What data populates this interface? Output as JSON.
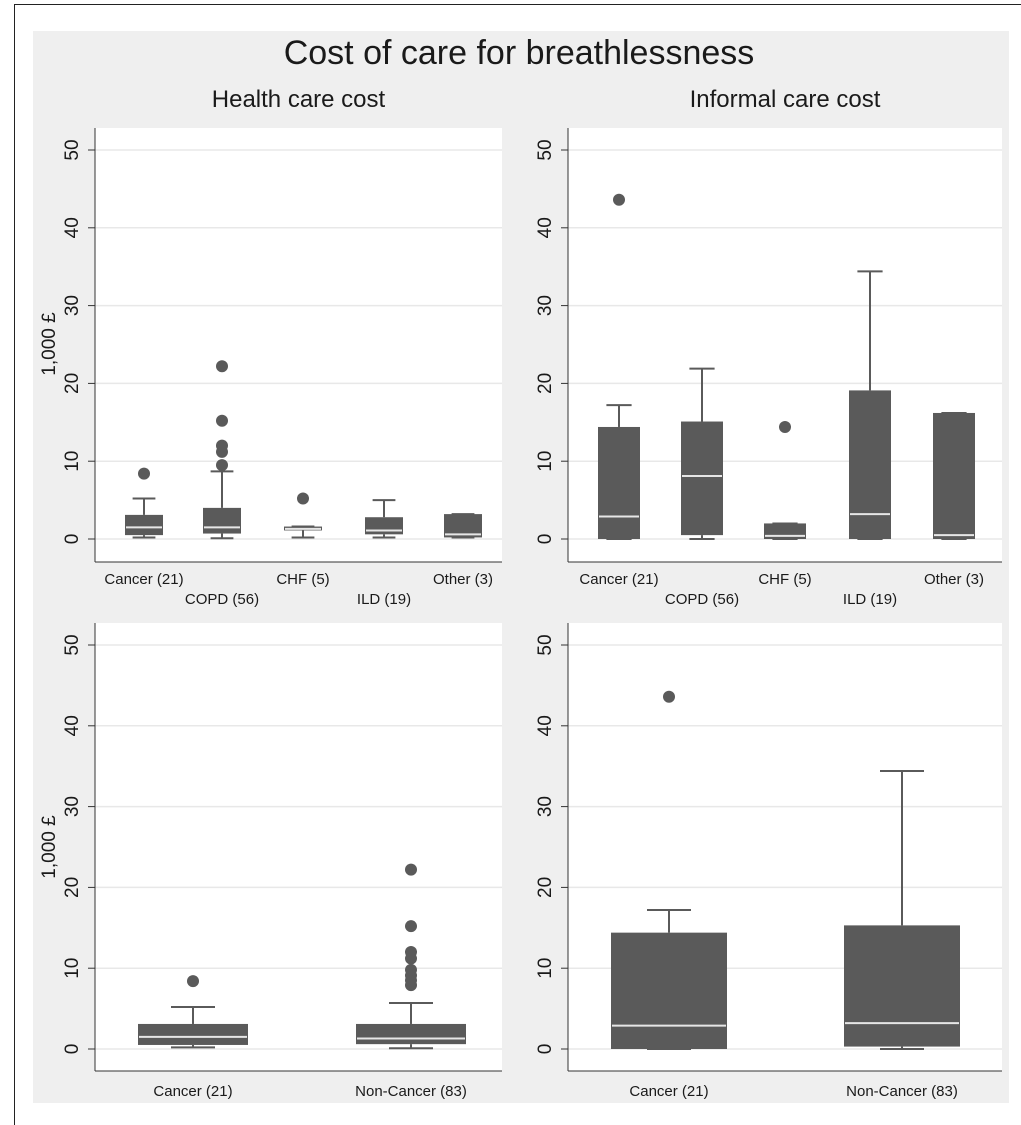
{
  "title": "Cost of care for breathlessness",
  "colors": {
    "box": "#5a5a5a",
    "median": "#e6e6e6",
    "grid": "#e8e8e8",
    "panel": "#efefef",
    "plot": "#ffffff"
  },
  "chart_data": [
    {
      "type": "box",
      "title": "Health care cost",
      "ylabel": "1,000 £",
      "ylim": [
        0,
        50
      ],
      "yticks": [
        "0",
        "10",
        "20",
        "30",
        "40",
        "50"
      ],
      "grid": true,
      "categories": [
        "Cancer (21)",
        "COPD (56)",
        "CHF (5)",
        "ILD (19)",
        "Other (3)"
      ],
      "boxes": [
        {
          "q1": 0.5,
          "median": 1.5,
          "q3": 3.1,
          "whisker_low": 0.2,
          "whisker_high": 5.2,
          "outliers": [
            8.4
          ]
        },
        {
          "q1": 0.7,
          "median": 1.5,
          "q3": 4.0,
          "whisker_low": 0.1,
          "whisker_high": 8.7,
          "outliers": [
            9.5,
            11.2,
            12.0,
            15.2,
            22.2
          ]
        },
        {
          "q1": 1.1,
          "median": 1.3,
          "q3": 1.6,
          "whisker_low": 0.2,
          "whisker_high": 1.6,
          "outliers": [
            5.2
          ]
        },
        {
          "q1": 0.6,
          "median": 1.1,
          "q3": 2.8,
          "whisker_low": 0.2,
          "whisker_high": 5.0,
          "outliers": []
        },
        {
          "q1": 0.2,
          "median": 0.6,
          "q3": 3.2,
          "whisker_low": 0.2,
          "whisker_high": 3.2,
          "outliers": []
        }
      ]
    },
    {
      "type": "box",
      "title": "Informal care cost",
      "ylabel": "",
      "ylim": [
        0,
        50
      ],
      "yticks": [
        "0",
        "10",
        "20",
        "30",
        "40",
        "50"
      ],
      "grid": true,
      "categories": [
        "Cancer (21)",
        "COPD (56)",
        "CHF (5)",
        "ILD (19)",
        "Other (3)"
      ],
      "boxes": [
        {
          "q1": 0.0,
          "median": 2.9,
          "q3": 14.4,
          "whisker_low": 0.0,
          "whisker_high": 17.2,
          "outliers": [
            43.6
          ]
        },
        {
          "q1": 0.5,
          "median": 8.1,
          "q3": 15.1,
          "whisker_low": 0.0,
          "whisker_high": 21.9,
          "outliers": []
        },
        {
          "q1": 0.0,
          "median": 0.4,
          "q3": 2.0,
          "whisker_low": 0.0,
          "whisker_high": 2.0,
          "outliers": [
            14.4
          ]
        },
        {
          "q1": 0.0,
          "median": 3.2,
          "q3": 19.1,
          "whisker_low": 0.0,
          "whisker_high": 34.4,
          "outliers": []
        },
        {
          "q1": 0.0,
          "median": 0.5,
          "q3": 16.2,
          "whisker_low": 0.0,
          "whisker_high": 16.2,
          "outliers": []
        }
      ]
    },
    {
      "type": "box",
      "title": "",
      "ylabel": "1,000 £",
      "ylim": [
        0,
        50
      ],
      "yticks": [
        "0",
        "10",
        "20",
        "30",
        "40",
        "50"
      ],
      "grid": true,
      "categories": [
        "Cancer (21)",
        "Non-Cancer (83)"
      ],
      "boxes": [
        {
          "q1": 0.5,
          "median": 1.5,
          "q3": 3.1,
          "whisker_low": 0.2,
          "whisker_high": 5.2,
          "outliers": [
            8.4
          ]
        },
        {
          "q1": 0.6,
          "median": 1.3,
          "q3": 3.1,
          "whisker_low": 0.1,
          "whisker_high": 5.7,
          "outliers": [
            7.9,
            8.5,
            9.1,
            9.8,
            11.2,
            12.0,
            15.2,
            22.2
          ]
        }
      ]
    },
    {
      "type": "box",
      "title": "",
      "ylabel": "",
      "ylim": [
        0,
        50
      ],
      "yticks": [
        "0",
        "10",
        "20",
        "30",
        "40",
        "50"
      ],
      "grid": true,
      "categories": [
        "Cancer (21)",
        "Non-Cancer (83)"
      ],
      "boxes": [
        {
          "q1": 0.0,
          "median": 2.9,
          "q3": 14.4,
          "whisker_low": 0.0,
          "whisker_high": 17.2,
          "outliers": [
            43.6
          ]
        },
        {
          "q1": 0.3,
          "median": 3.2,
          "q3": 15.3,
          "whisker_low": 0.0,
          "whisker_high": 34.4,
          "outliers": []
        }
      ]
    }
  ]
}
